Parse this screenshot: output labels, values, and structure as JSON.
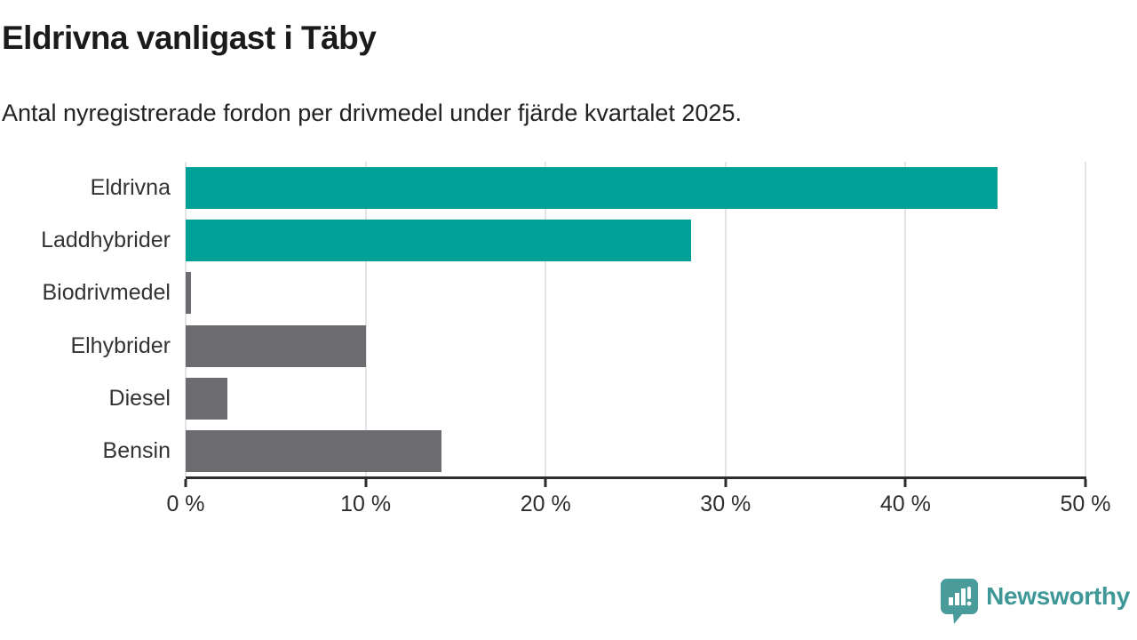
{
  "title": "Eldrivna vanligast i Täby",
  "subtitle": "Antal nyregistrerade fordon per drivmedel under fjärde kvartalet 2025.",
  "chart_data": {
    "type": "bar",
    "orientation": "horizontal",
    "title": "Eldrivna vanligast i Täby",
    "subtitle": "Antal nyregistrerade fordon per drivmedel under fjärde kvartalet 2025.",
    "categories": [
      "Eldrivna",
      "Laddhybrider",
      "Biodrivmedel",
      "Elhybrider",
      "Diesel",
      "Bensin"
    ],
    "values": [
      45.1,
      28.1,
      0.3,
      10,
      2.3,
      14.2
    ],
    "unit": "%",
    "xlim": [
      0,
      50
    ],
    "x_ticks": [
      0,
      10,
      20,
      30,
      40,
      50
    ],
    "x_tick_labels": [
      "0 %",
      "10 %",
      "20 %",
      "30 %",
      "40 %",
      "50 %"
    ],
    "bar_colors": [
      "#00a096",
      "#00a096",
      "#6b6b70",
      "#6b6b70",
      "#6b6b70",
      "#6b6b70"
    ],
    "highlight_color": "#00a096",
    "default_color": "#6b6b70",
    "gridline_color": "#e4e4e4",
    "grid": true,
    "legend": false
  },
  "footer": {
    "brand": "Newsworthy",
    "brand_color": "#3f9897",
    "logo_icon": "speech-bubble-bar-chart-icon"
  }
}
